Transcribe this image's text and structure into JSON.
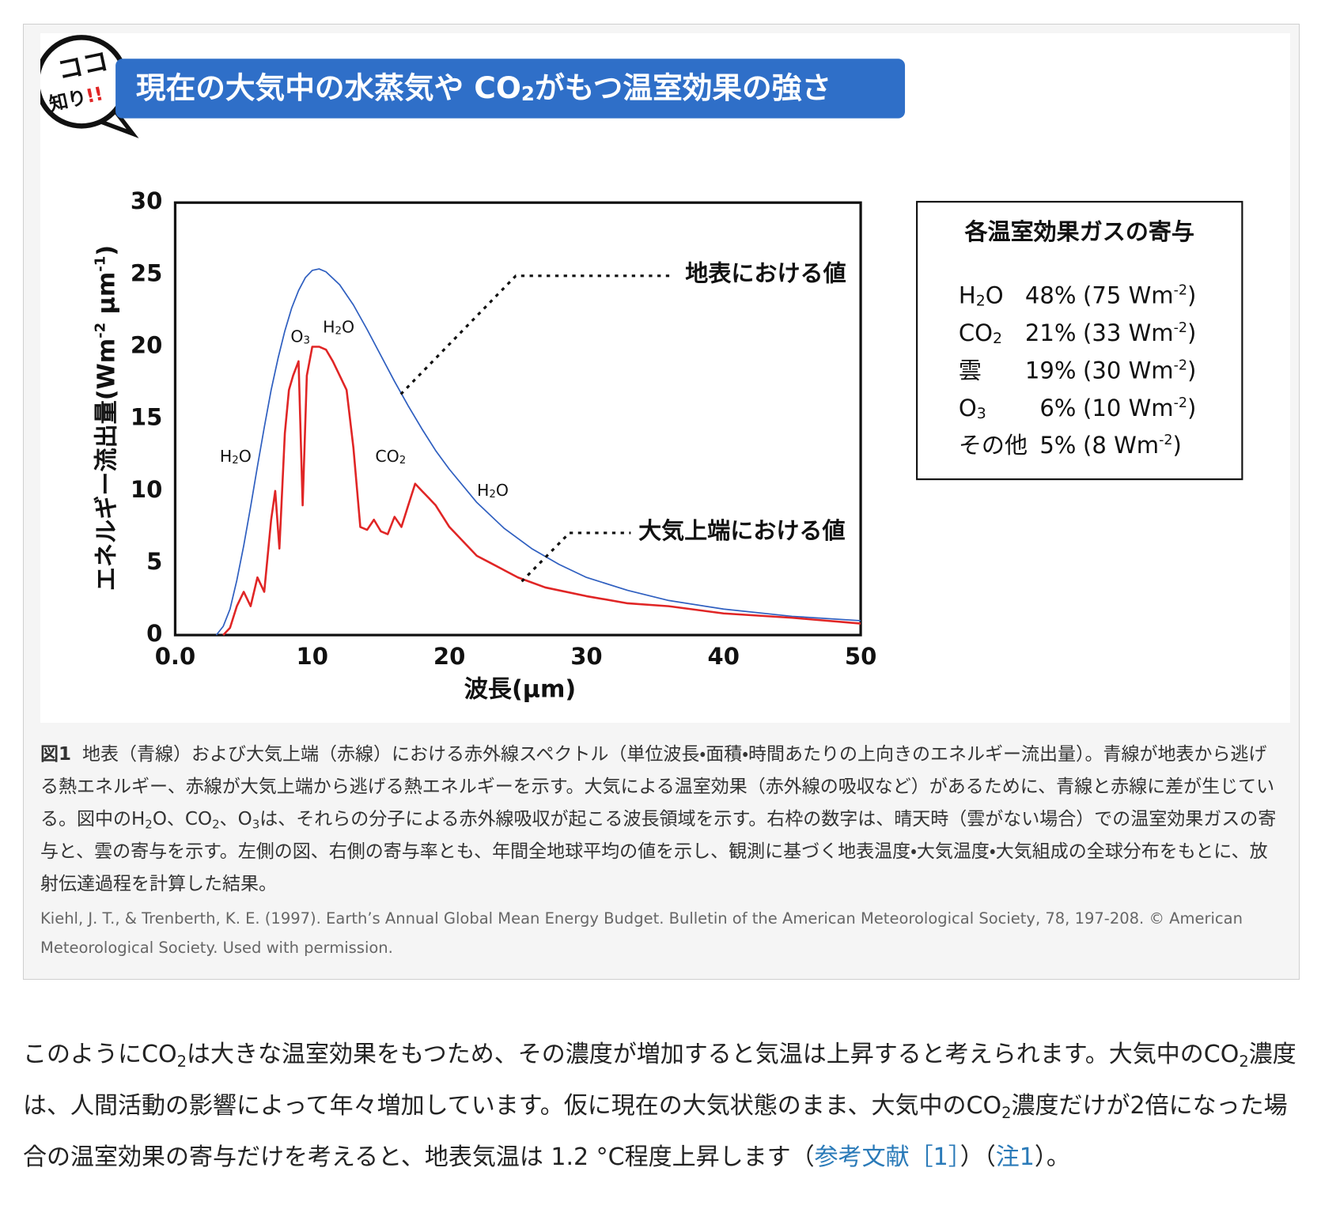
{
  "badge": {
    "top": "ココ",
    "bottom": "知り",
    "exclaim": "!!"
  },
  "banner": {
    "title": [
      "現在の大気中の水蒸気や CO",
      {
        "sub": "2"
      },
      "がもつ温室効果の強さ"
    ]
  },
  "chart_data": {
    "type": "line",
    "ylabel": [
      "エネルギー流出量(Wm",
      {
        "sup": "-2"
      },
      " μm",
      {
        "sup": "-1"
      },
      ")"
    ],
    "xlabel": "波長(μm)",
    "xlim": [
      0,
      50
    ],
    "xticks": [
      {
        "value": 0,
        "label": "0.0"
      },
      10,
      20,
      30,
      40,
      50
    ],
    "ylim": [
      0,
      30
    ],
    "yticks": [
      0,
      5,
      10,
      15,
      20,
      25,
      30
    ],
    "grid": false,
    "series": [
      {
        "name": "地表における値",
        "color": "#2f5fc0",
        "x": [
          3,
          3.5,
          4,
          4.5,
          5,
          5.5,
          6,
          6.5,
          7,
          7.5,
          8,
          8.5,
          9,
          9.5,
          10,
          10.5,
          11,
          12,
          13,
          14,
          15,
          16,
          17,
          18,
          19,
          20,
          22,
          24,
          26,
          28,
          30,
          33,
          36,
          40,
          45,
          50
        ],
        "values": [
          0,
          0.6,
          1.8,
          3.8,
          6.2,
          8.9,
          11.7,
          14.4,
          17,
          19.2,
          21.1,
          22.7,
          23.9,
          24.8,
          25.3,
          25.4,
          25.2,
          24.3,
          22.9,
          21.2,
          19.4,
          17.6,
          15.9,
          14.3,
          12.8,
          11.5,
          9.2,
          7.4,
          6.0,
          4.9,
          4.0,
          3.1,
          2.4,
          1.8,
          1.3,
          1.0
        ]
      },
      {
        "name": "大気上端における値",
        "color": "#e02525",
        "x": [
          3.5,
          4,
          4.5,
          5,
          5.5,
          6,
          6.5,
          7,
          7.3,
          7.6,
          8,
          8.3,
          8.6,
          9,
          9.3,
          9.6,
          10,
          10.5,
          11,
          11.5,
          12,
          12.5,
          13,
          13.5,
          14,
          14.5,
          15,
          15.5,
          16,
          16.5,
          17,
          17.5,
          18,
          18.5,
          19,
          20,
          21,
          22,
          23,
          24,
          25,
          27,
          30,
          33,
          36,
          40,
          45,
          50
        ],
        "values": [
          0,
          0.5,
          2,
          3,
          2,
          4,
          3,
          8,
          10,
          6,
          14,
          17,
          18,
          19,
          9,
          18,
          20,
          20,
          19.8,
          19,
          18,
          17,
          13,
          7.5,
          7.3,
          8,
          7.2,
          7,
          8.2,
          7.5,
          9,
          10.5,
          10,
          9.5,
          9,
          7.5,
          6.5,
          5.5,
          5,
          4.5,
          4,
          3.3,
          2.7,
          2.2,
          2,
          1.5,
          1.2,
          0.8
        ]
      }
    ],
    "annotations": [
      [
        "H",
        {
          "sub": "2"
        },
        "O"
      ],
      [
        "O",
        {
          "sub": "3"
        }
      ],
      [
        "H",
        {
          "sub": "2"
        },
        "O"
      ],
      [
        "CO",
        {
          "sub": "2"
        }
      ],
      [
        "H",
        {
          "sub": "2"
        },
        "O"
      ]
    ]
  },
  "contribution_table": {
    "title": "各温室効果ガスの寄与",
    "rows": [
      {
        "gas": [
          "H",
          {
            "sub": "2"
          },
          "O"
        ],
        "share": "48%",
        "amount": [
          "(75 Wm",
          {
            "sup": "-2"
          },
          ")"
        ]
      },
      {
        "gas": [
          "CO",
          {
            "sub": "2"
          }
        ],
        "share": "21%",
        "amount": [
          "(33 Wm",
          {
            "sup": "-2"
          },
          ")"
        ]
      },
      {
        "gas": [
          "雲"
        ],
        "share": "19%",
        "amount": [
          "(30 Wm",
          {
            "sup": "-2"
          },
          ")"
        ]
      },
      {
        "gas": [
          "O",
          {
            "sub": "3"
          }
        ],
        "share": "6%",
        "amount": [
          "(10 Wm",
          {
            "sup": "-2"
          },
          ")"
        ]
      },
      {
        "gas": [
          "その他"
        ],
        "share": "5%",
        "amount": [
          "(8 Wm",
          {
            "sup": "-2"
          },
          ")"
        ]
      }
    ]
  },
  "caption": [
    {
      "bold": "図1"
    },
    "地表（青線）および大気上端（赤線）における赤外線スペクトル（単位波長・面積・時間あたりの上向きのエネルギー流出量）。青線が地表から逃げる熱エネルギー、赤線が大気上端から逃げる熱エネルギーを示す。大気による温室効果（赤外線の吸収など）があるために、青線と赤線に差が生じている。図中のH",
    {
      "sub": "2"
    },
    "O、CO",
    {
      "sub": "2"
    },
    "、O",
    {
      "sub": "3"
    },
    "は、それらの分子による赤外線吸収が起こる波長領域を示す。右枠の数字は、晴天時（雲がない場合）での温室効果ガスの寄与と、雲の寄与を示す。左側の図、右側の寄与率とも、年間全地球平均の値を示し、観測に基づく地表温度・大気温度・大気組成の全球分布をもとに、放射伝達過程を計算した結果。"
  ],
  "citation": "Kiehl, J. T., & Trenberth, K. E. (1997). Earth’s Annual Global Mean Energy Budget. Bulletin of the American Meteorological Society, 78, 197-208. © American Meteorological Society. Used with permission.",
  "paragraph": [
    "このようにCO",
    {
      "sub": "2"
    },
    "は大きな温室効果をもつため、その濃度が増加すると気温は上昇すると考えられます。大気中のCO",
    {
      "sub": "2"
    },
    "濃度は、人間活動の影響によって年々増加しています。仮に現在の大気状態のまま、大気中のCO",
    {
      "sub": "2"
    },
    "濃度だけが2倍になった場合の温室効果の寄与だけを考えると、地表気温は 1.2 °C程度上昇します（",
    {
      "link": "参考文献［1］"
    },
    "）（",
    {
      "link": "注1"
    },
    "）。"
  ]
}
